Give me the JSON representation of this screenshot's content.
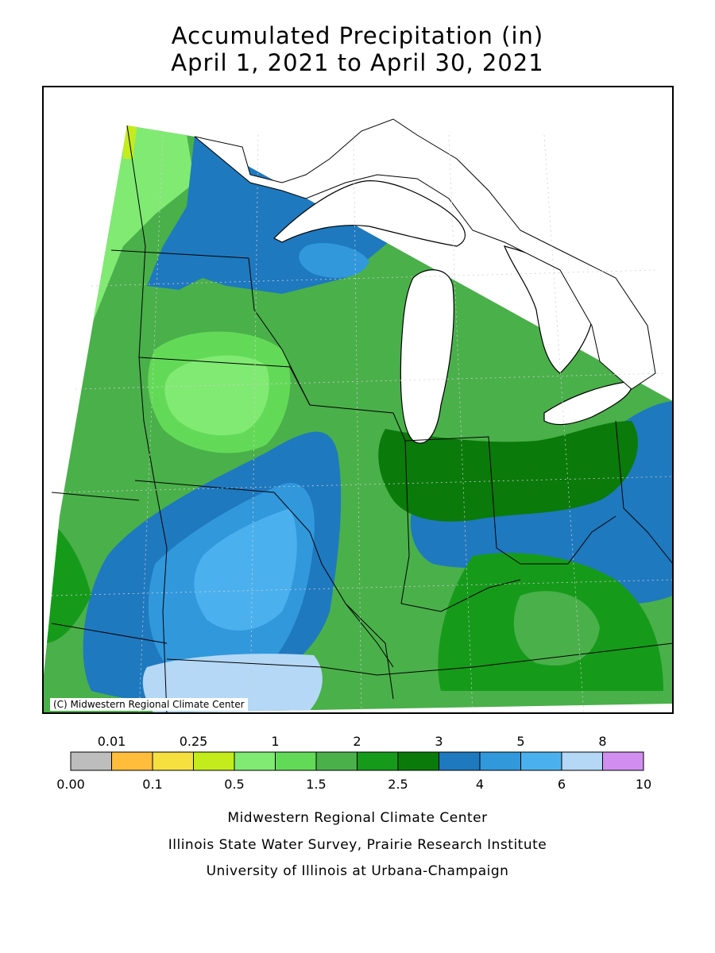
{
  "header": {
    "title_line1": "Accumulated Precipitation (in)",
    "title_line2": "April 1, 2021 to April 30, 2021"
  },
  "map": {
    "copyright": "(C) Midwestern Regional Climate Center",
    "colors": {
      "lake": "#ffffff",
      "border": "#000000",
      "grid": "#cfcfcf"
    }
  },
  "legend": {
    "bins": [
      {
        "color": "#bdbdbd"
      },
      {
        "color": "#ffbd3b"
      },
      {
        "color": "#f5e03f"
      },
      {
        "color": "#c4ec1c"
      },
      {
        "color": "#80ea73"
      },
      {
        "color": "#63da57"
      },
      {
        "color": "#4ab04a"
      },
      {
        "color": "#169a1a"
      },
      {
        "color": "#0a7a0a"
      },
      {
        "color": "#1e79bf"
      },
      {
        "color": "#3198dc"
      },
      {
        "color": "#4bb1ee"
      },
      {
        "color": "#b4d8f6"
      },
      {
        "color": "#d08ff0"
      }
    ],
    "top_labels": [
      "0.01",
      "0.25",
      "1",
      "2",
      "3",
      "5",
      "8"
    ],
    "bottom_labels": [
      "0.00",
      "0.1",
      "0.5",
      "1.5",
      "2.5",
      "4",
      "6",
      "10"
    ]
  },
  "credits": {
    "line1": "Midwestern Regional Climate Center",
    "line2": "Illinois State Water Survey, Prairie Research Institute",
    "line3": "University of Illinois at Urbana-Champaign"
  }
}
